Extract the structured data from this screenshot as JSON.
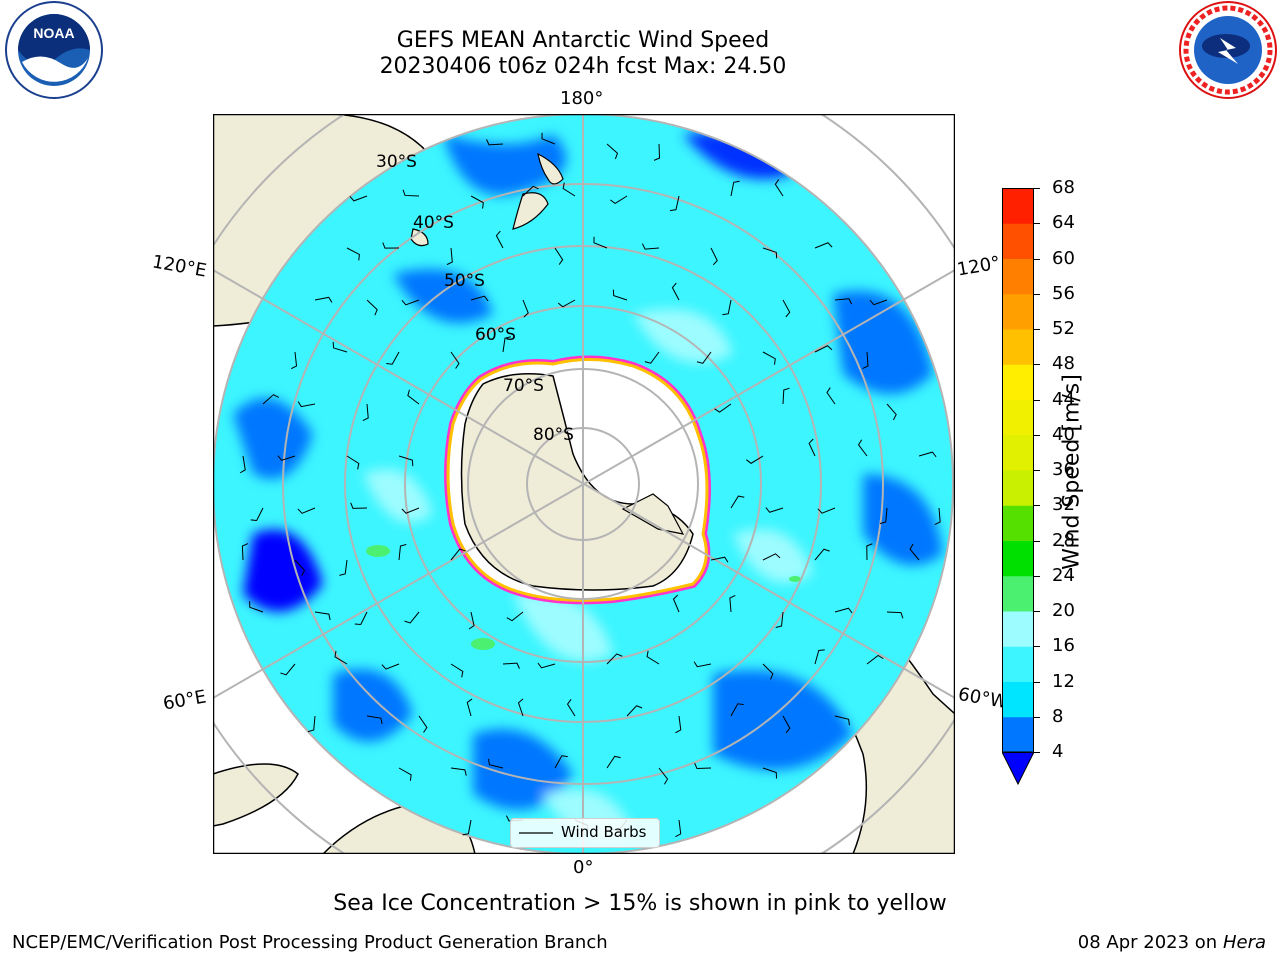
{
  "title": {
    "line1": "GEFS MEAN Antarctic Wind Speed",
    "line2": "20230406 t06z 024h fcst   Max: 24.50"
  },
  "map": {
    "projection": "south-polar-stereographic",
    "lon_labels": {
      "top": "180°",
      "bottom": "0°",
      "left_upper": "120°E",
      "left_lower": "60°E",
      "right_upper": "120°",
      "right_lower": "60°W"
    },
    "lat_labels": [
      "30°S",
      "40°S",
      "50°S",
      "60°S",
      "70°S",
      "80°S"
    ],
    "legend": {
      "label": "Wind Barbs"
    }
  },
  "colorbar": {
    "label": "Wind Speed [m/s]",
    "ticks": [
      "4",
      "8",
      "12",
      "16",
      "20",
      "24",
      "28",
      "32",
      "36",
      "40",
      "44",
      "48",
      "52",
      "56",
      "60",
      "64",
      "68"
    ],
    "colors": [
      "#0077ff",
      "#00e5ff",
      "#3cf5ff",
      "#9dfcff",
      "#4cf070",
      "#00e000",
      "#55e000",
      "#c8f000",
      "#e0f000",
      "#f0f000",
      "#ffee00",
      "#ffc000",
      "#ffa000",
      "#ff8000",
      "#ff5000",
      "#ff2000",
      "#ff0000"
    ],
    "extend_color": "#0000ff"
  },
  "note": "Sea Ice Concentration > 15% is shown in pink to yellow",
  "footer": {
    "left": "NCEP/EMC/Verification Post Processing Product Generation Branch",
    "right_date": "08 Apr 2023 on ",
    "right_machine": "Hera"
  },
  "logos": {
    "left": "NOAA",
    "right": "NATIONAL WEATHER SERVICE"
  },
  "colors": {
    "land": "#efecd8",
    "ocean_base": "#3cf5ff",
    "ice": "#ffffff",
    "grid": "#b4b4b4"
  }
}
